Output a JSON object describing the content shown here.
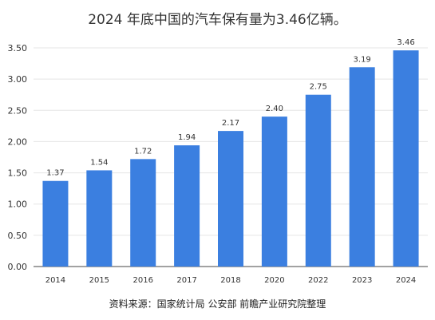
{
  "title": "2024 年底中国的汽车保有量为3.46亿辆。",
  "source": "资料来源：国家统计局 公安部 前瞻产业研究院整理",
  "colors": {
    "bar": "#3B7FE0",
    "grid": "#E5E5E5",
    "axis": "#444444",
    "label": "#333333"
  },
  "chart_data": {
    "type": "bar",
    "categories": [
      "2014",
      "2015",
      "2016",
      "2017",
      "2018",
      "2020",
      "2022",
      "2023",
      "2024"
    ],
    "values": [
      1.37,
      1.54,
      1.72,
      1.94,
      2.17,
      2.4,
      2.75,
      3.19,
      3.46
    ],
    "value_labels": [
      "1.37",
      "1.54",
      "1.72",
      "1.94",
      "2.17",
      "2.40",
      "2.75",
      "3.19",
      "3.46"
    ],
    "ylim": [
      0,
      3.5
    ],
    "yticks": [
      "0.00",
      "0.50",
      "1.00",
      "1.50",
      "2.00",
      "2.50",
      "3.00",
      "3.50"
    ],
    "grid": true,
    "xlabel": "",
    "ylabel": ""
  }
}
